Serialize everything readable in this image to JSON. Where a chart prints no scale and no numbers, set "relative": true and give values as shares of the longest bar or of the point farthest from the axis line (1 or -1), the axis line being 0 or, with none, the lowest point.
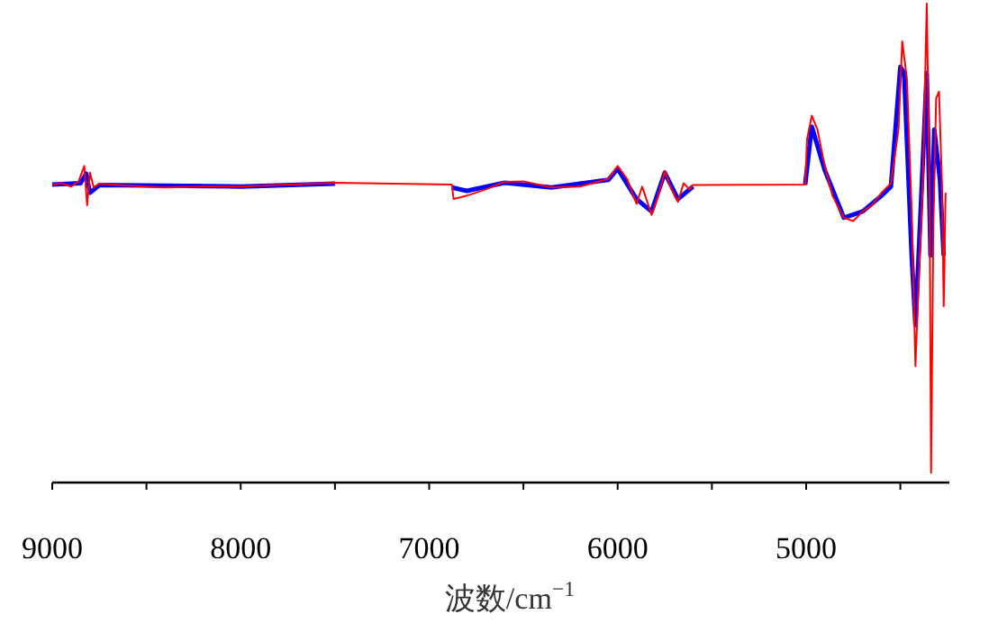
{
  "chart_data": {
    "type": "line",
    "relative": true,
    "xlabel": "波数/cm$^{−1}$",
    "xlim": [
      9000,
      4240
    ],
    "xticks": [
      9000,
      {
        "value": 8500,
        "label": null
      },
      8000,
      {
        "value": 7500,
        "label": null
      },
      7000,
      {
        "value": 6500,
        "label": null
      },
      6000,
      {
        "value": 5500,
        "label": null
      },
      5000,
      {
        "value": 4500,
        "label": null
      }
    ],
    "grid": false,
    "line_style": "solid",
    "series": [
      {
        "color": "#0000ff",
        "x": [
          9000,
          8850,
          8820,
          8800,
          8750,
          8000,
          7500
        ],
        "values": [
          0.622,
          0.625,
          0.645,
          0.605,
          0.621,
          0.618,
          0.624
        ]
      },
      {
        "color": "#0000ff",
        "x": [
          6880,
          6800,
          6600,
          6350,
          6050,
          6000,
          5900,
          5820,
          5750,
          5680,
          5600
        ],
        "values": [
          0.616,
          0.609,
          0.626,
          0.616,
          0.632,
          0.655,
          0.592,
          0.566,
          0.647,
          0.592,
          0.618
        ]
      },
      {
        "color": "#0000ff",
        "x": [
          5005,
          4970,
          4900,
          4800,
          4700,
          4600,
          4550,
          4500,
          4480,
          4440,
          4420,
          4400,
          4360,
          4340,
          4320,
          4290,
          4270
        ],
        "values": [
          0.622,
          0.743,
          0.651,
          0.553,
          0.566,
          0.599,
          0.618,
          0.868,
          0.855,
          0.474,
          0.329,
          0.5,
          0.855,
          0.474,
          0.737,
          0.632,
          0.474
        ]
      },
      {
        "color": "#ff0000",
        "x": [
          9000,
          8950,
          8900,
          8860,
          8830,
          8815,
          8800,
          8780,
          8750,
          8600,
          8400,
          8200,
          8000,
          7800,
          7500,
          6880,
          6870,
          6800,
          6700,
          6600,
          6500,
          6350,
          6200,
          6050,
          6000,
          5950,
          5900,
          5870,
          5820,
          5780,
          5750,
          5720,
          5680,
          5650,
          5620,
          5600,
          5005,
          4995,
          4970,
          4940,
          4900,
          4860,
          4800,
          4750,
          4700,
          4650,
          4600,
          4550,
          4510,
          4490,
          4465,
          4440,
          4420,
          4400,
          4380,
          4360,
          4345,
          4337,
          4325,
          4310,
          4295,
          4280,
          4270,
          4260
        ],
        "values": [
          0.622,
          0.625,
          0.618,
          0.629,
          0.661,
          0.579,
          0.647,
          0.616,
          0.624,
          0.62,
          0.616,
          0.618,
          0.618,
          0.621,
          0.626,
          0.622,
          0.592,
          0.599,
          0.612,
          0.628,
          0.629,
          0.616,
          0.618,
          0.634,
          0.661,
          0.634,
          0.582,
          0.618,
          0.559,
          0.605,
          0.651,
          0.618,
          0.586,
          0.625,
          0.612,
          0.621,
          0.622,
          0.717,
          0.766,
          0.737,
          0.658,
          0.599,
          0.553,
          0.546,
          0.566,
          0.579,
          0.605,
          0.625,
          0.737,
          0.921,
          0.842,
          0.566,
          0.243,
          0.447,
          0.632,
          1,
          0.605,
          0.02,
          0.539,
          0.803,
          0.816,
          0.632,
          0.368,
          0.605
        ]
      }
    ]
  }
}
